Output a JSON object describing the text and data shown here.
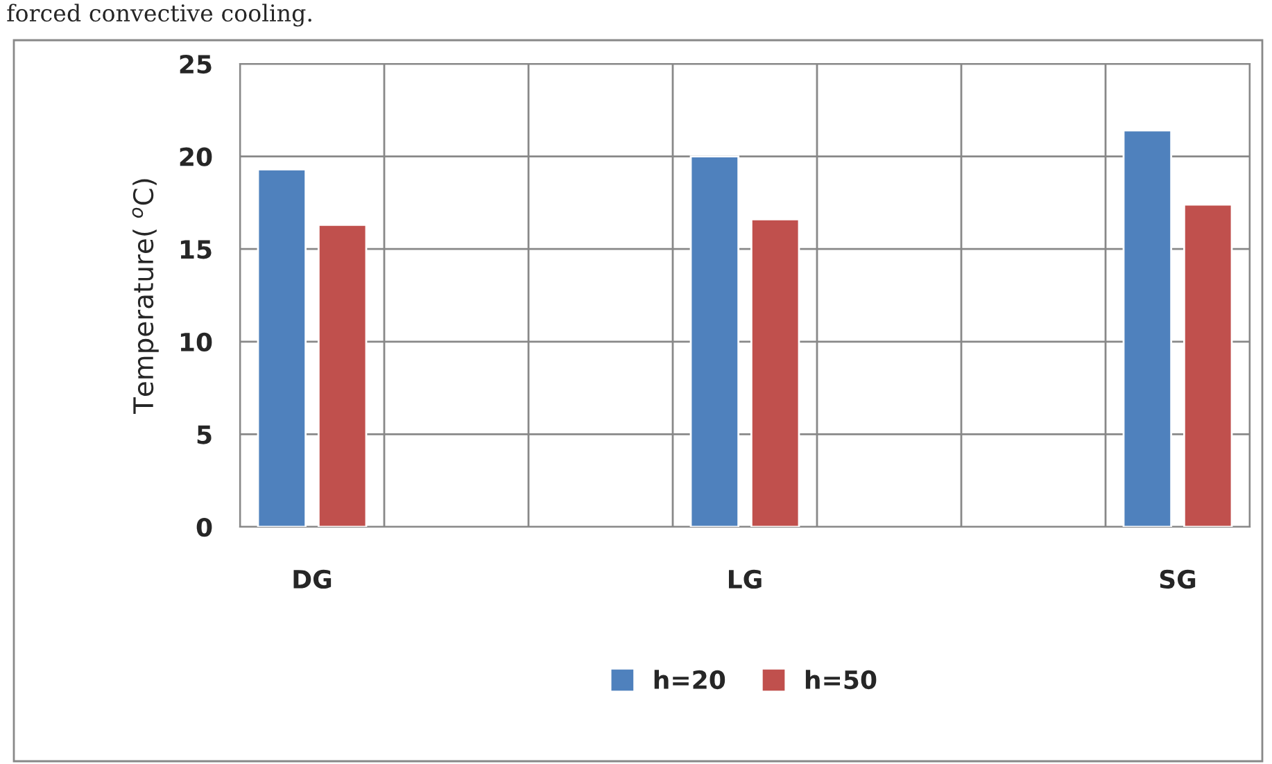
{
  "chart_data": {
    "type": "bar",
    "categories": [
      "DG",
      null,
      null,
      "LG",
      null,
      null,
      "SG"
    ],
    "series": [
      {
        "name": "h=20",
        "color": "#4f81bd",
        "values": [
          19.3,
          null,
          null,
          20.0,
          null,
          null,
          21.4
        ]
      },
      {
        "name": "h=50",
        "color": "#c0504d",
        "values": [
          16.3,
          null,
          null,
          16.6,
          null,
          null,
          17.4
        ]
      }
    ],
    "ylabel": "Temperature( $^{o}$C)",
    "ylim": [
      0,
      25
    ],
    "yticks": [
      0,
      5,
      10,
      15,
      20,
      25
    ],
    "grid": true,
    "legend": "bottom",
    "annotations": [
      "forced convective cooling."
    ]
  }
}
